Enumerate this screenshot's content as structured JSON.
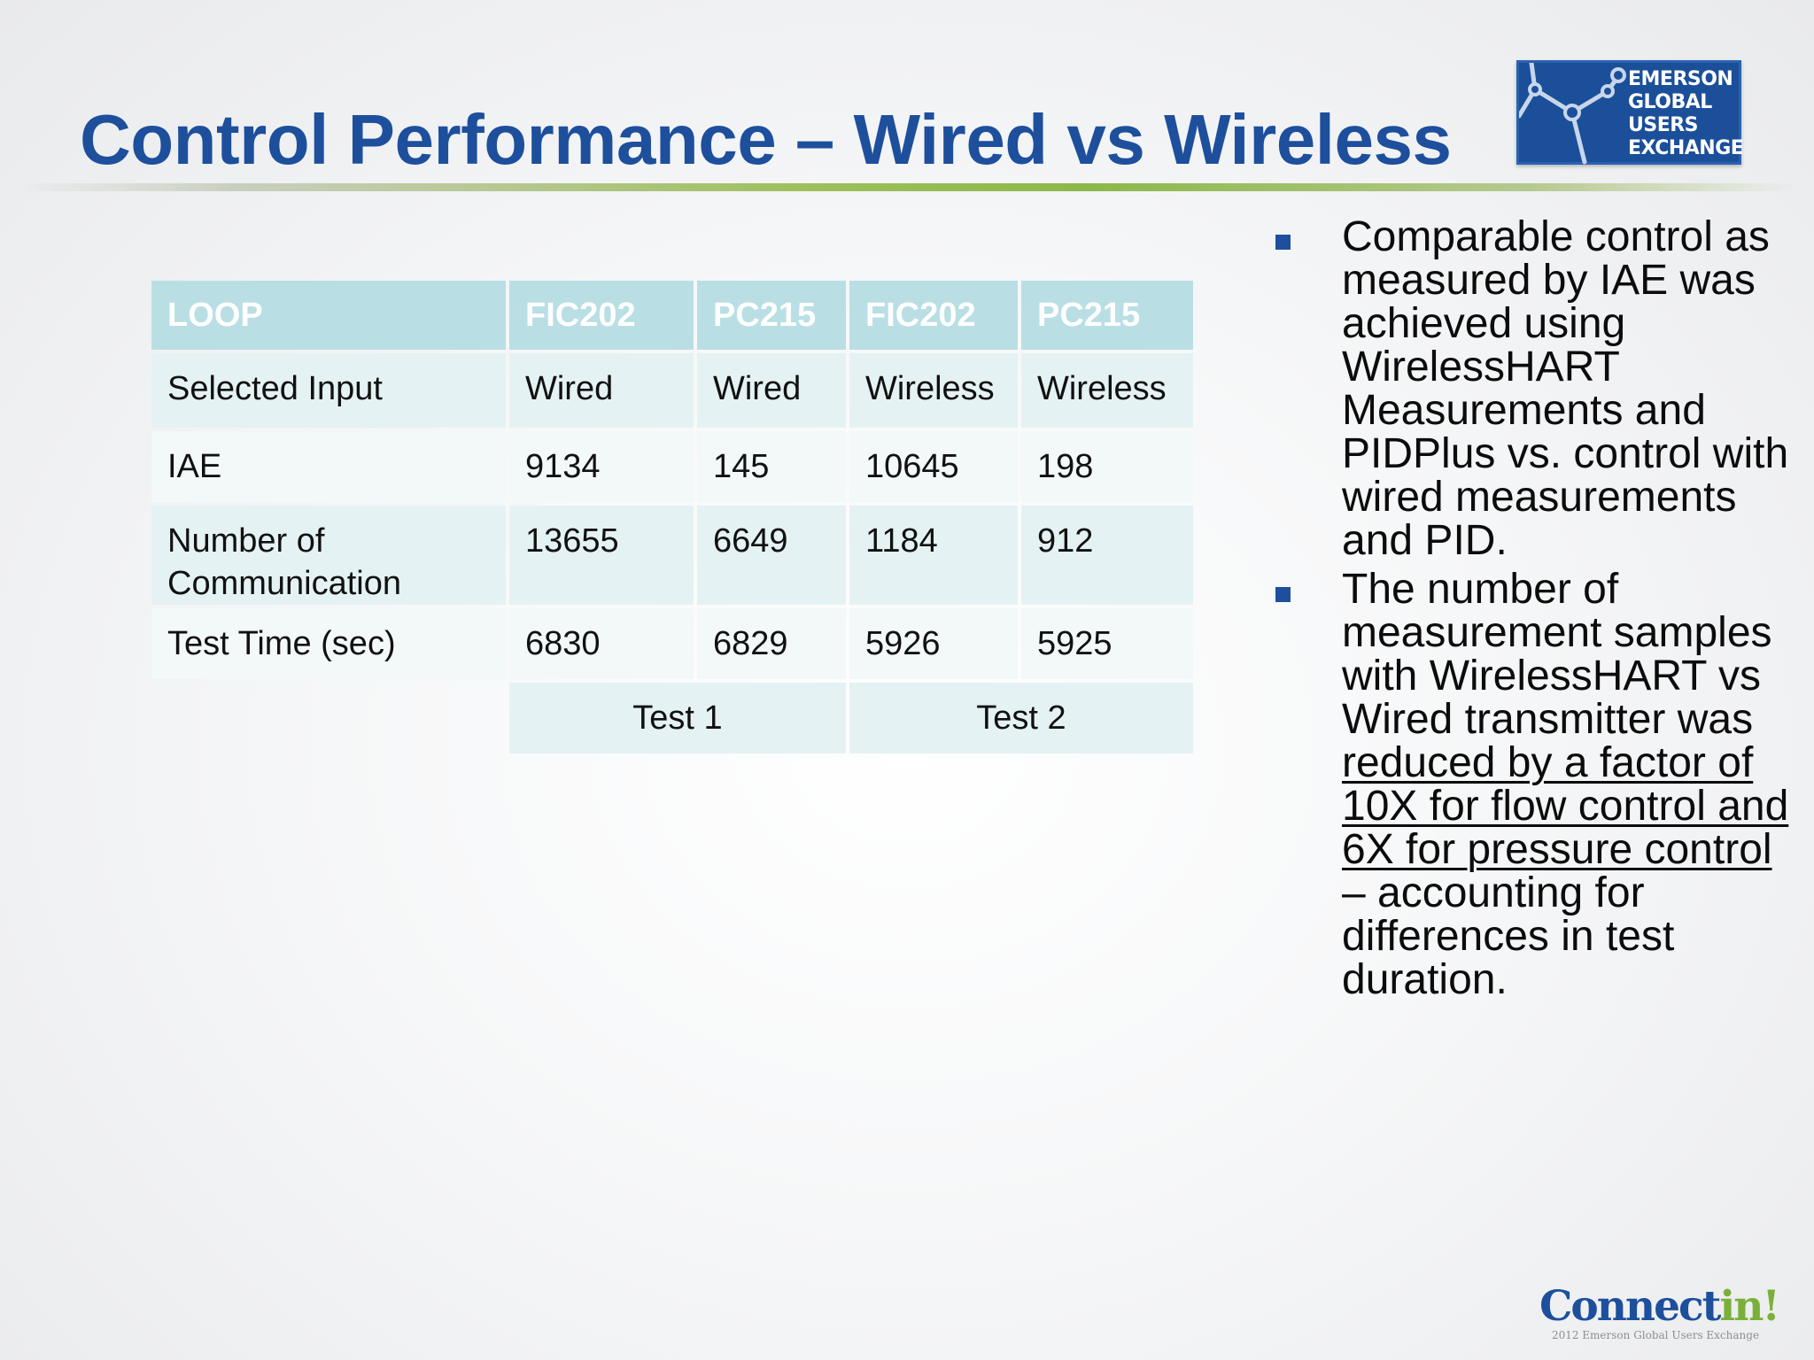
{
  "slide": {
    "title": "Control Performance – Wired vs Wireless"
  },
  "logo": {
    "lines": [
      "EMERSON",
      "GLOBAL",
      "USERS",
      "EXCHANGE"
    ],
    "background": "#1b4f9a"
  },
  "table": {
    "headers": [
      "LOOP",
      "FIC202",
      "PC215",
      "FIC202",
      "PC215"
    ],
    "rows": [
      {
        "label": "Selected Input",
        "values": [
          "Wired",
          "Wired",
          "Wireless",
          "Wireless"
        ]
      },
      {
        "label": "IAE",
        "values": [
          "9134",
          "145",
          "10645",
          "198"
        ]
      },
      {
        "label": "Number of Communication",
        "label_line1": "Number of",
        "label_line2": "Communication",
        "values": [
          "13655",
          "6649",
          "1184",
          "912"
        ]
      },
      {
        "label": "Test Time (sec)",
        "values": [
          "6830",
          "6829",
          "5926",
          "5925"
        ]
      }
    ],
    "groups": [
      "Test 1",
      "Test  2"
    ],
    "header_color": "#b9dfe4"
  },
  "bullets": [
    {
      "text": "Comparable control as measured by IAE was achieved using WirelessHART Measurements and PIDPlus vs. control with wired measurements and PID."
    },
    {
      "text_before": "The number of measurement samples with WirelessHART vs Wired transmitter was ",
      "text_underlined": "reduced by a factor of 10X for flow control and 6X for pressure control ",
      "text_after": "– accounting for differences in test duration."
    }
  ],
  "footer": {
    "brand_main": "Connect",
    "brand_accent": "in!",
    "brand_sub": "2012 Emerson Global Users Exchange"
  },
  "colors": {
    "title": "#1d4f9c",
    "bullet_marker": "#1d4f9c",
    "rule_green": "#8cb84a"
  }
}
